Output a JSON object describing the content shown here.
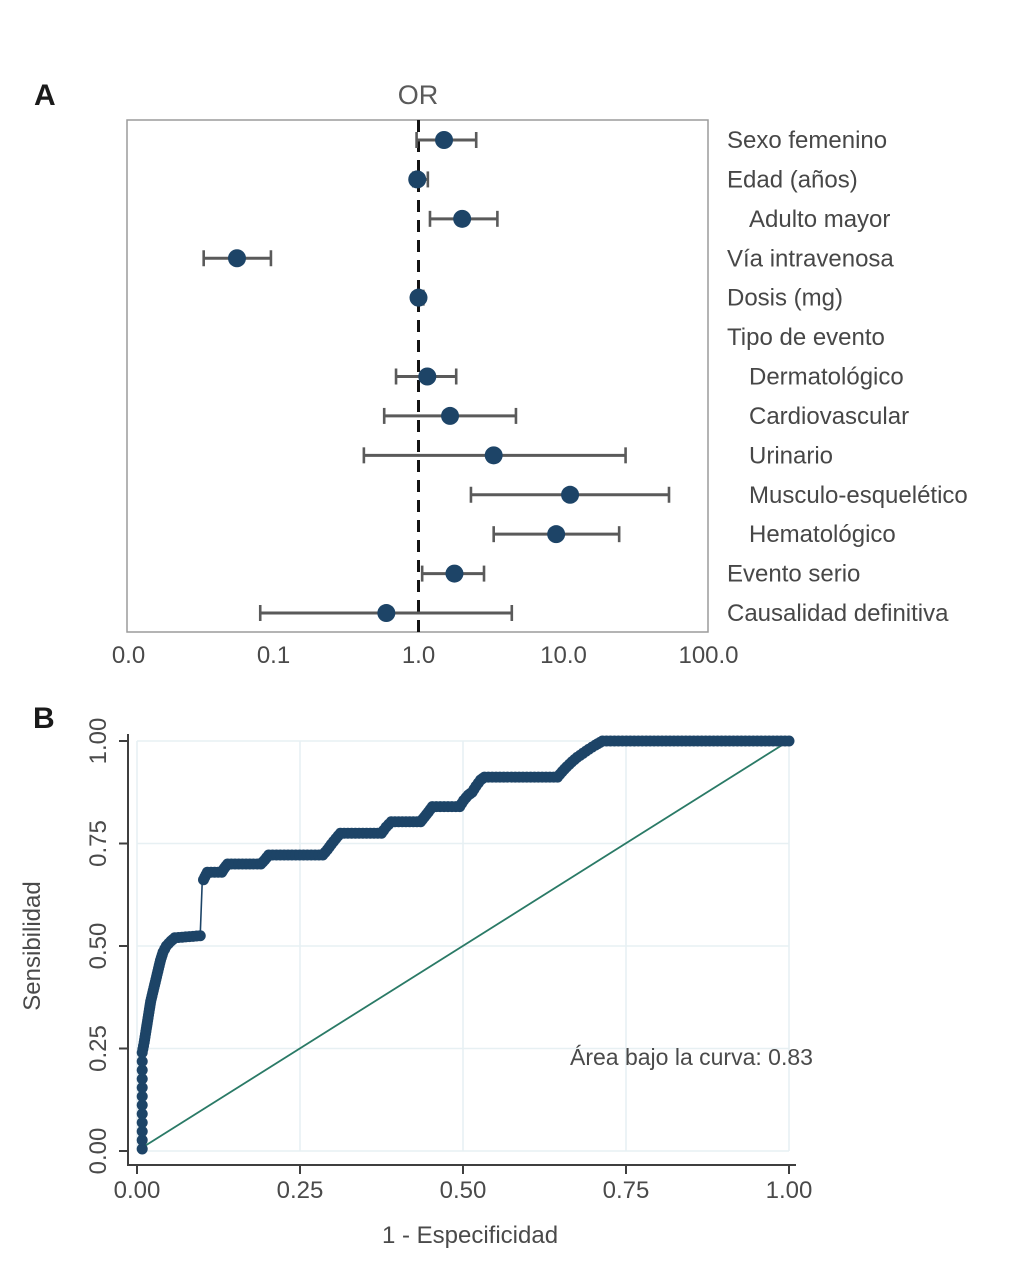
{
  "figure": {
    "panel_a_letter": "A",
    "panel_b_letter": "B"
  },
  "colors": {
    "point": "#1d4467",
    "error_bar": "#5a5a5a",
    "reference_line": "#141414",
    "diagonal_line": "#2a7a66",
    "grid": "#e7f0f3",
    "axis": "#3f3f3f",
    "plot_border": "#9b9b9b",
    "text": "#4a4a4a"
  },
  "chart_data": [
    {
      "id": "forest",
      "type": "scatter",
      "title": "OR",
      "x_axis": {
        "scale": "log",
        "tick_labels": [
          "0.0",
          "0.1",
          "1.0",
          "10.0",
          "100.0"
        ],
        "tick_values": [
          0.01,
          0.1,
          1,
          10,
          100
        ],
        "range": [
          0.01,
          100
        ]
      },
      "reference_line": 1.0,
      "rows": [
        {
          "label": "Sexo femenino",
          "indent": false,
          "or": 1.5,
          "ci_low": 0.97,
          "ci_high": 2.5
        },
        {
          "label": "Edad (años)",
          "indent": false,
          "or": 0.98,
          "ci_low": 0.92,
          "ci_high": 1.16
        },
        {
          "label": "Adulto mayor",
          "indent": true,
          "or": 2.0,
          "ci_low": 1.2,
          "ci_high": 3.5
        },
        {
          "label": "Vía intravenosa",
          "indent": false,
          "or": 0.056,
          "ci_low": 0.033,
          "ci_high": 0.096
        },
        {
          "label": "Dosis (mg)",
          "indent": false,
          "or": 1.0,
          "ci_low": 0.95,
          "ci_high": 1.08
        },
        {
          "label": "Tipo de evento",
          "indent": false,
          "or": null,
          "ci_low": null,
          "ci_high": null
        },
        {
          "label": "Dermatológico",
          "indent": true,
          "or": 1.15,
          "ci_low": 0.7,
          "ci_high": 1.82
        },
        {
          "label": "Cardiovascular",
          "indent": true,
          "or": 1.65,
          "ci_low": 0.58,
          "ci_high": 4.7
        },
        {
          "label": "Urinario",
          "indent": true,
          "or": 3.3,
          "ci_low": 0.42,
          "ci_high": 26.8
        },
        {
          "label": "Musculo-esquelético",
          "indent": true,
          "or": 11.1,
          "ci_low": 2.3,
          "ci_high": 53.4
        },
        {
          "label": "Hematológico",
          "indent": true,
          "or": 8.9,
          "ci_low": 3.3,
          "ci_high": 24.2
        },
        {
          "label": "Evento serio",
          "indent": false,
          "or": 1.77,
          "ci_low": 1.06,
          "ci_high": 2.83
        },
        {
          "label": "Causalidad definitiva",
          "indent": false,
          "or": 0.6,
          "ci_low": 0.081,
          "ci_high": 4.4
        }
      ]
    },
    {
      "id": "roc",
      "type": "line",
      "xlabel": "1 - Especificidad",
      "ylabel": "Sensibilidad",
      "annotation": "Área bajo la curva: 0.83",
      "auc": 0.83,
      "x_tick_labels": [
        "0.00",
        "0.25",
        "0.50",
        "0.75",
        "1.00"
      ],
      "x_tick_values": [
        0,
        0.25,
        0.5,
        0.75,
        1
      ],
      "y_tick_labels": [
        "0.00",
        "0.25",
        "0.50",
        "0.75",
        "1.00"
      ],
      "y_tick_values": [
        0,
        0.25,
        0.5,
        0.75,
        1
      ],
      "xlim": [
        0,
        1
      ],
      "ylim": [
        0,
        1
      ],
      "grid": true,
      "diagonal_reference": [
        [
          0,
          0
        ],
        [
          1,
          1
        ]
      ],
      "curve": [
        [
          0.008,
          0.005
        ],
        [
          0.008,
          0.24,
          2
        ],
        [
          0.011,
          0.265
        ],
        [
          0.013,
          0.285
        ],
        [
          0.015,
          0.305
        ],
        [
          0.017,
          0.325
        ],
        [
          0.019,
          0.345
        ],
        [
          0.021,
          0.365
        ],
        [
          0.024,
          0.385
        ],
        [
          0.027,
          0.405
        ],
        [
          0.03,
          0.425
        ],
        [
          0.033,
          0.445
        ],
        [
          0.036,
          0.465
        ],
        [
          0.04,
          0.485
        ],
        [
          0.045,
          0.5
        ],
        [
          0.052,
          0.512
        ],
        [
          0.058,
          0.52
        ],
        [
          0.097,
          0.525
        ],
        [
          0.1,
          0.655,
          1
        ],
        [
          0.104,
          0.668
        ],
        [
          0.108,
          0.68
        ],
        [
          0.13,
          0.68
        ],
        [
          0.134,
          0.69
        ],
        [
          0.139,
          0.7
        ],
        [
          0.19,
          0.7
        ],
        [
          0.196,
          0.71
        ],
        [
          0.202,
          0.722
        ],
        [
          0.285,
          0.722
        ],
        [
          0.292,
          0.735
        ],
        [
          0.298,
          0.748
        ],
        [
          0.305,
          0.762
        ],
        [
          0.312,
          0.775
        ],
        [
          0.375,
          0.775
        ],
        [
          0.382,
          0.79
        ],
        [
          0.39,
          0.803
        ],
        [
          0.435,
          0.803
        ],
        [
          0.441,
          0.815
        ],
        [
          0.447,
          0.827
        ],
        [
          0.453,
          0.84
        ],
        [
          0.495,
          0.84
        ],
        [
          0.501,
          0.855
        ],
        [
          0.508,
          0.868
        ],
        [
          0.514,
          0.875
        ],
        [
          0.52,
          0.89
        ],
        [
          0.527,
          0.905
        ],
        [
          0.533,
          0.912
        ],
        [
          0.645,
          0.912
        ],
        [
          0.652,
          0.925
        ],
        [
          0.659,
          0.937
        ],
        [
          0.667,
          0.949
        ],
        [
          0.675,
          0.96
        ],
        [
          0.684,
          0.97
        ],
        [
          0.693,
          0.98
        ],
        [
          0.703,
          0.99
        ],
        [
          0.714,
          1.0
        ],
        [
          1.0,
          1.0
        ]
      ]
    }
  ]
}
